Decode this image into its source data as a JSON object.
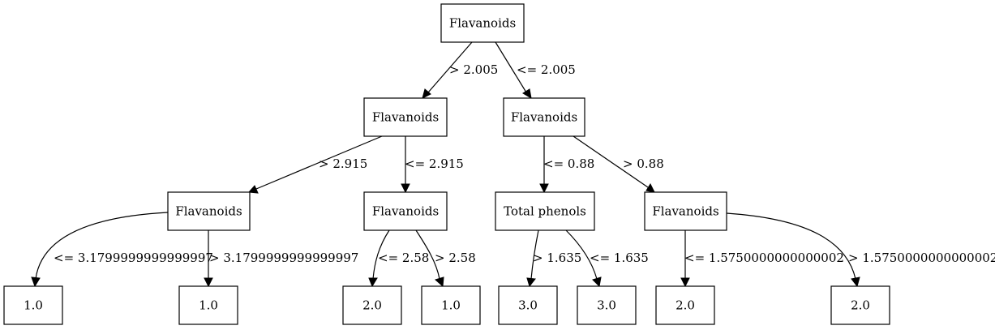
{
  "tree": {
    "nodes": [
      {
        "id": "n0",
        "label": "Flavanoids"
      },
      {
        "id": "n1",
        "label": "Flavanoids"
      },
      {
        "id": "n2",
        "label": "Flavanoids"
      },
      {
        "id": "n3",
        "label": "Flavanoids"
      },
      {
        "id": "n4",
        "label": "Flavanoids"
      },
      {
        "id": "n5",
        "label": "Total phenols"
      },
      {
        "id": "n6",
        "label": "Flavanoids"
      },
      {
        "id": "l1",
        "label": "1.0"
      },
      {
        "id": "l2",
        "label": "1.0"
      },
      {
        "id": "l3",
        "label": "2.0"
      },
      {
        "id": "l4",
        "label": "1.0"
      },
      {
        "id": "l5",
        "label": "3.0"
      },
      {
        "id": "l6",
        "label": "3.0"
      },
      {
        "id": "l7",
        "label": "2.0"
      },
      {
        "id": "l8",
        "label": "2.0"
      }
    ],
    "edges": [
      {
        "from": "n0",
        "to": "n1",
        "label": "> 2.005"
      },
      {
        "from": "n0",
        "to": "n2",
        "label": "<= 2.005"
      },
      {
        "from": "n1",
        "to": "n3",
        "label": "> 2.915"
      },
      {
        "from": "n1",
        "to": "n4",
        "label": "<= 2.915"
      },
      {
        "from": "n2",
        "to": "n5",
        "label": "<= 0.88"
      },
      {
        "from": "n2",
        "to": "n6",
        "label": "> 0.88"
      },
      {
        "from": "n3",
        "to": "l1",
        "label": "<= 3.1799999999999997"
      },
      {
        "from": "n3",
        "to": "l2",
        "label": "> 3.1799999999999997"
      },
      {
        "from": "n4",
        "to": "l3",
        "label": "<= 2.58"
      },
      {
        "from": "n4",
        "to": "l4",
        "label": "> 2.58"
      },
      {
        "from": "n5",
        "to": "l5",
        "label": "> 1.635"
      },
      {
        "from": "n5",
        "to": "l6",
        "label": "<= 1.635"
      },
      {
        "from": "n6",
        "to": "l7",
        "label": "<= 1.5750000000000002"
      },
      {
        "from": "n6",
        "to": "l8",
        "label": "> 1.5750000000000002"
      }
    ]
  }
}
